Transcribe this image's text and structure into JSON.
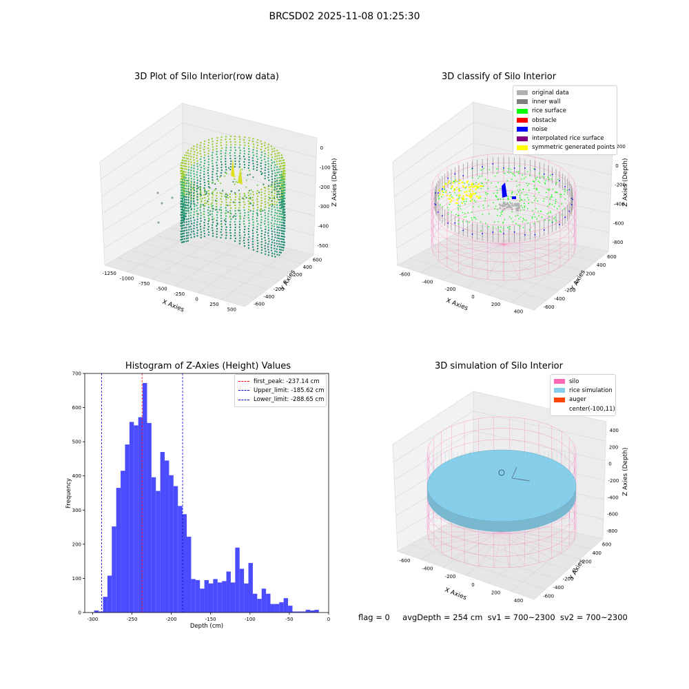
{
  "figure": {
    "suptitle": "BRCSD02 2025-11-08 01:25:30",
    "status": {
      "flag": "flag = 0",
      "avg_depth": "avgDepth = 254 cm",
      "sv1": "sv1 = 700~2300",
      "sv2": "sv2 = 700~2300"
    }
  },
  "colors": {
    "histogram": "#4c4cff",
    "first_peak": "#ff0000",
    "limits": "#0000cc",
    "silo": "#ff69b4",
    "rice_sim": "#87ceeb",
    "auger": "#ff4500",
    "original": "#b0b0b0",
    "inner_wall": "#808080",
    "rice_surface": "#00ff00",
    "obstacle": "#ff0000",
    "noise": "#0000ff",
    "interpolated": "#800080",
    "symmetric": "#ffff00"
  },
  "chart_data": [
    {
      "type": "scatter",
      "title": "3D Plot of Silo Interior(row data)",
      "xlabel": "X Axies",
      "ylabel": "Y Axies",
      "zlabel": "Z Axies (Depth)",
      "x_ticks": [
        "-1250",
        "-1000",
        "-750",
        "-500",
        "-250",
        "0",
        "250",
        "500"
      ],
      "y_ticks": [
        "-600",
        "-400",
        "-200",
        "0",
        "200",
        "400",
        "600"
      ],
      "z_ticks": [
        "0",
        "-100",
        "-200",
        "-300",
        "-400",
        "-500"
      ]
    },
    {
      "type": "scatter",
      "title": "3D classify of Silo Interior",
      "xlabel": "X Axies",
      "ylabel": "Y Axies",
      "zlabel": "Z Axies (Depth)",
      "x_ticks": [
        "-600",
        "-400",
        "-200",
        "0",
        "200",
        "400"
      ],
      "y_ticks": [
        "-600",
        "-400",
        "-200",
        "0",
        "200",
        "400",
        "600"
      ],
      "z_ticks": [
        "200",
        "0",
        "-200",
        "-400",
        "-600",
        "-800"
      ],
      "legend": [
        {
          "label": "original data",
          "color": "#b0b0b0"
        },
        {
          "label": "inner wall",
          "color": "#808080"
        },
        {
          "label": "rice surface",
          "color": "#00ff00"
        },
        {
          "label": "obstacle",
          "color": "#ff0000"
        },
        {
          "label": "noise",
          "color": "#0000ff"
        },
        {
          "label": "interpolated rice surface",
          "color": "#800080"
        },
        {
          "label": "symmetric generated points",
          "color": "#ffff00"
        }
      ]
    },
    {
      "type": "bar",
      "title": "Histogram of Z-Axies (Height) Values",
      "xlabel": "Depth (cm)",
      "ylabel": "Frequency",
      "xlim": [
        -310,
        0
      ],
      "ylim": [
        0,
        700
      ],
      "x_ticks": [
        -300,
        -250,
        -200,
        -150,
        -100,
        -50,
        0
      ],
      "y_ticks": [
        0,
        100,
        200,
        300,
        400,
        500,
        600,
        700
      ],
      "bin_start": -298,
      "bin_width": 5.6,
      "values": [
        6,
        3,
        46,
        108,
        252,
        365,
        415,
        492,
        558,
        548,
        572,
        672,
        555,
        396,
        356,
        470,
        445,
        402,
        370,
        312,
        288,
        222,
        98,
        95,
        70,
        95,
        85,
        98,
        88,
        92,
        120,
        88,
        190,
        128,
        85,
        145,
        55,
        40,
        70,
        55,
        25,
        25,
        30,
        42,
        20,
        3,
        3,
        3,
        8,
        6,
        8
      ],
      "vlines": [
        {
          "label": "first_peak: -237.14 cm",
          "x": -237.14,
          "color": "#ff0000"
        },
        {
          "label": "Upper_limit: -185.62 cm",
          "x": -185.62,
          "color": "#0000cc"
        },
        {
          "label": "Lower_limit: -288.65 cm",
          "x": -288.65,
          "color": "#0000cc"
        }
      ]
    },
    {
      "type": "scatter",
      "title": "3D simulation of Silo Interior",
      "xlabel": "X Axies",
      "ylabel": "Y Axies",
      "zlabel": "Z Axies (Depth)",
      "x_ticks": [
        "-600",
        "-400",
        "-200",
        "0",
        "200",
        "400"
      ],
      "y_ticks": [
        "-600",
        "-400",
        "-200",
        "0",
        "200",
        "400",
        "600"
      ],
      "z_ticks": [
        "400",
        "200",
        "0",
        "-200",
        "-400",
        "-600",
        "-800"
      ],
      "legend": [
        {
          "label": "silo",
          "color": "#ff69b4"
        },
        {
          "label": "rice simulation",
          "color": "#87ceeb"
        },
        {
          "label": "auger",
          "color": "#ff4500"
        },
        {
          "label": "center(-100,11)",
          "color": ""
        }
      ]
    }
  ]
}
